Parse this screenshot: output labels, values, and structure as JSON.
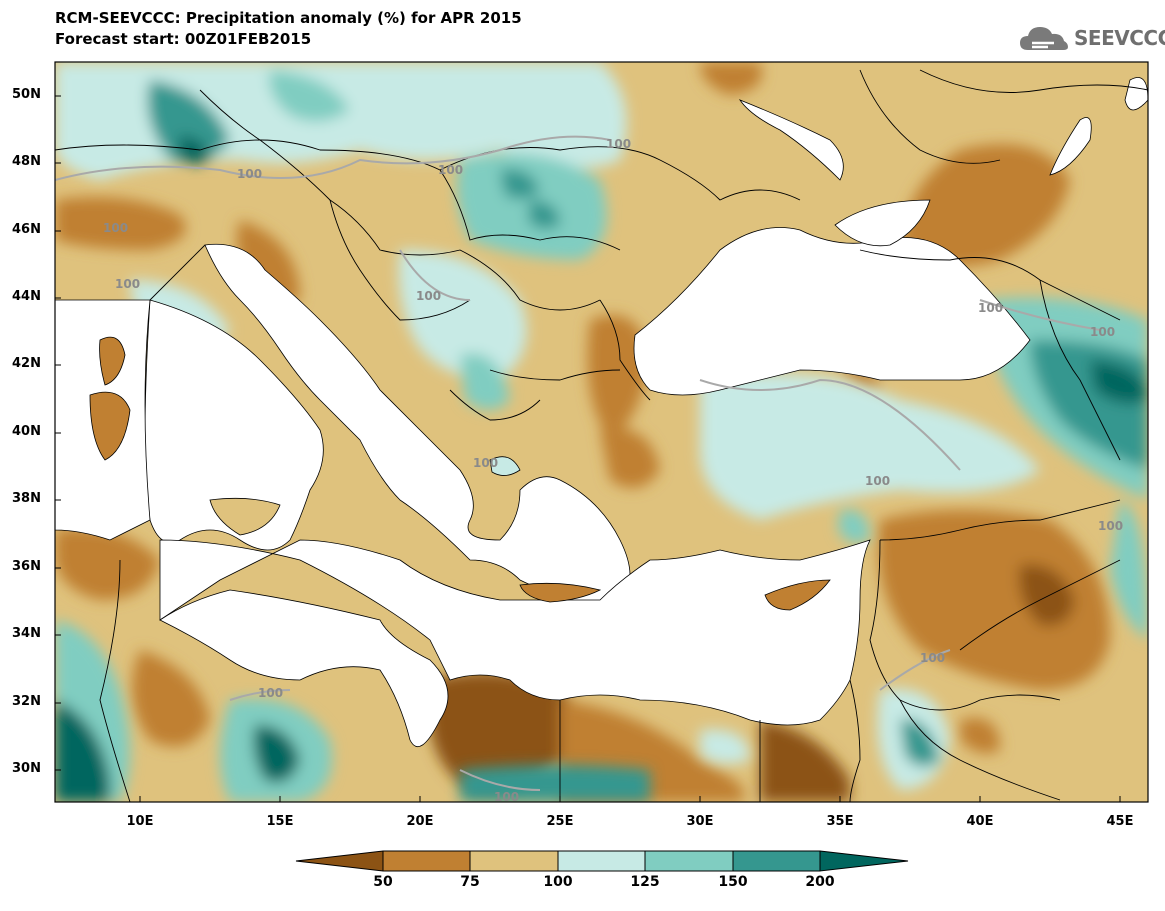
{
  "header": {
    "title_line1": "RCM-SEEVCCC: Precipitation anomaly (%) for APR 2015",
    "title_line2": "Forecast start: 00Z01FEB2015"
  },
  "logo": {
    "text": "SEEVCCC",
    "icon": "cloud-icon"
  },
  "map": {
    "latitude_ticks": [
      "50N",
      "48N",
      "46N",
      "44N",
      "42N",
      "40N",
      "38N",
      "36N",
      "34N",
      "32N",
      "30N"
    ],
    "longitude_ticks": [
      "10E",
      "15E",
      "20E",
      "25E",
      "30E",
      "35E",
      "40E",
      "45E"
    ],
    "contour_labels": [
      "100",
      "100",
      "100",
      "100",
      "100",
      "100",
      "100",
      "100",
      "100",
      "100",
      "100",
      "100",
      "100",
      "100"
    ]
  },
  "colorbar": {
    "labels": [
      "50",
      "75",
      "100",
      "125",
      "150",
      "200"
    ],
    "colors": [
      "#8c5314",
      "#c08032",
      "#dfc27d",
      "#c7eae5",
      "#80cdc1",
      "#35978f",
      "#01665e"
    ]
  }
}
